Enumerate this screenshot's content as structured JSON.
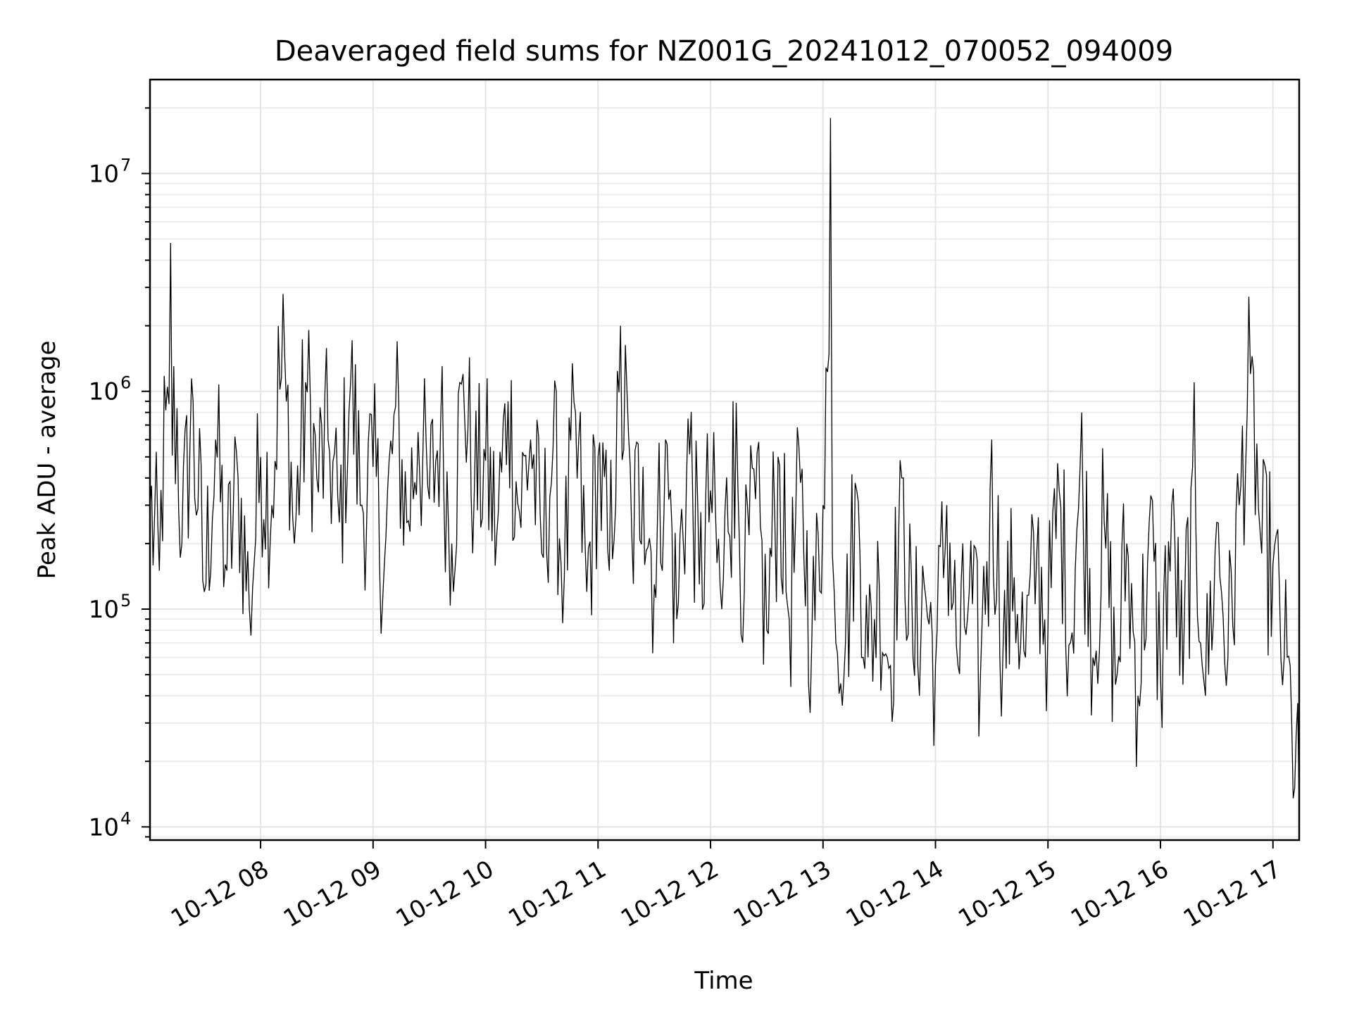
{
  "chart_data": {
    "type": "line",
    "title": "Deaveraged field sums for NZ001G_20241012_070052_094009",
    "xlabel": "Time",
    "ylabel": "Peak ADU - average",
    "yscale": "log",
    "ylim": [
      8700,
      27000000
    ],
    "xlim": [
      "2024-10-12 07:01",
      "2024-10-12 17:14"
    ],
    "grid": true,
    "legend": "none",
    "line_color": "#000000",
    "x_ticks": [
      {
        "value": "2024-10-12 08:00",
        "label": "10-12 08"
      },
      {
        "value": "2024-10-12 09:00",
        "label": "10-12 09"
      },
      {
        "value": "2024-10-12 10:00",
        "label": "10-12 10"
      },
      {
        "value": "2024-10-12 11:00",
        "label": "10-12 11"
      },
      {
        "value": "2024-10-12 12:00",
        "label": "10-12 12"
      },
      {
        "value": "2024-10-12 13:00",
        "label": "10-12 13"
      },
      {
        "value": "2024-10-12 14:00",
        "label": "10-12 14"
      },
      {
        "value": "2024-10-12 15:00",
        "label": "10-12 15"
      },
      {
        "value": "2024-10-12 16:00",
        "label": "10-12 16"
      },
      {
        "value": "2024-10-12 17:00",
        "label": "10-12 17"
      }
    ],
    "y_ticks": [
      {
        "value": 10000,
        "base": "10",
        "exp": "4"
      },
      {
        "value": 100000,
        "base": "10",
        "exp": "5"
      },
      {
        "value": 1000000,
        "base": "10",
        "exp": "6"
      },
      {
        "value": 10000000,
        "base": "10",
        "exp": "7"
      }
    ],
    "series": [
      {
        "x": [
          "2024-10-12 07:01",
          "2024-10-12 07:06",
          "2024-10-12 07:12",
          "2024-10-12 07:18",
          "2024-10-12 07:24",
          "2024-10-12 07:30",
          "2024-10-12 07:36",
          "2024-10-12 07:42",
          "2024-10-12 07:48",
          "2024-10-12 07:54",
          "2024-10-12 08:00",
          "2024-10-12 08:06",
          "2024-10-12 08:12",
          "2024-10-12 08:18",
          "2024-10-12 08:24",
          "2024-10-12 08:30",
          "2024-10-12 08:36",
          "2024-10-12 08:42",
          "2024-10-12 08:48",
          "2024-10-12 08:54",
          "2024-10-12 09:00",
          "2024-10-12 09:06",
          "2024-10-12 09:12",
          "2024-10-12 09:18",
          "2024-10-12 09:24",
          "2024-10-12 09:30",
          "2024-10-12 09:36",
          "2024-10-12 09:42",
          "2024-10-12 09:48",
          "2024-10-12 09:54",
          "2024-10-12 10:00",
          "2024-10-12 10:06",
          "2024-10-12 10:12",
          "2024-10-12 10:18",
          "2024-10-12 10:24",
          "2024-10-12 10:30",
          "2024-10-12 10:36",
          "2024-10-12 10:42",
          "2024-10-12 10:48",
          "2024-10-12 10:54",
          "2024-10-12 11:00",
          "2024-10-12 11:06",
          "2024-10-12 11:12",
          "2024-10-12 11:18",
          "2024-10-12 11:24",
          "2024-10-12 11:30",
          "2024-10-12 11:36",
          "2024-10-12 11:42",
          "2024-10-12 11:48",
          "2024-10-12 11:54",
          "2024-10-12 12:00",
          "2024-10-12 12:06",
          "2024-10-12 12:12",
          "2024-10-12 12:18",
          "2024-10-12 12:24",
          "2024-10-12 12:30",
          "2024-10-12 12:36",
          "2024-10-12 12:42",
          "2024-10-12 12:48",
          "2024-10-12 12:54",
          "2024-10-12 13:00",
          "2024-10-12 13:04",
          "2024-10-12 13:06",
          "2024-10-12 13:12",
          "2024-10-12 13:18",
          "2024-10-12 13:24",
          "2024-10-12 13:30",
          "2024-10-12 13:36",
          "2024-10-12 13:42",
          "2024-10-12 13:48",
          "2024-10-12 13:54",
          "2024-10-12 14:00",
          "2024-10-12 14:06",
          "2024-10-12 14:12",
          "2024-10-12 14:18",
          "2024-10-12 14:24",
          "2024-10-12 14:30",
          "2024-10-12 14:36",
          "2024-10-12 14:42",
          "2024-10-12 14:48",
          "2024-10-12 14:54",
          "2024-10-12 15:00",
          "2024-10-12 15:06",
          "2024-10-12 15:12",
          "2024-10-12 15:18",
          "2024-10-12 15:24",
          "2024-10-12 15:30",
          "2024-10-12 15:36",
          "2024-10-12 15:42",
          "2024-10-12 15:48",
          "2024-10-12 15:54",
          "2024-10-12 16:00",
          "2024-10-12 16:06",
          "2024-10-12 16:12",
          "2024-10-12 16:18",
          "2024-10-12 16:24",
          "2024-10-12 16:30",
          "2024-10-12 16:36",
          "2024-10-12 16:42",
          "2024-10-12 16:48",
          "2024-10-12 16:54",
          "2024-10-12 17:00",
          "2024-10-12 17:06",
          "2024-10-12 17:10",
          "2024-10-12 17:14"
        ],
        "y": [
          300000,
          150000,
          4800000,
          200000,
          900000,
          120000,
          600000,
          150000,
          400000,
          100000,
          500000,
          300000,
          2800000,
          200000,
          1100000,
          400000,
          600000,
          250000,
          1100000,
          300000,
          450000,
          160000,
          850000,
          250000,
          650000,
          320000,
          700000,
          200000,
          1200000,
          350000,
          480000,
          220000,
          900000,
          280000,
          600000,
          180000,
          550000,
          140000,
          800000,
          120000,
          500000,
          150000,
          2000000,
          220000,
          450000,
          130000,
          600000,
          90000,
          750000,
          130000,
          350000,
          100000,
          900000,
          120000,
          320000,
          80000,
          500000,
          90000,
          380000,
          70000,
          300000,
          18000000,
          120000,
          70000,
          350000,
          60000,
          130000,
          55000,
          400000,
          60000,
          130000,
          55000,
          300000,
          55000,
          120000,
          50000,
          600000,
          65000,
          140000,
          60000,
          180000,
          80000,
          350000,
          70000,
          800000,
          60000,
          250000,
          45000,
          200000,
          40000,
          250000,
          50000,
          300000,
          45000,
          1100000,
          40000,
          250000,
          60000,
          300000,
          1200000,
          180000,
          160000,
          60000,
          30000,
          12000
        ]
      }
    ]
  }
}
